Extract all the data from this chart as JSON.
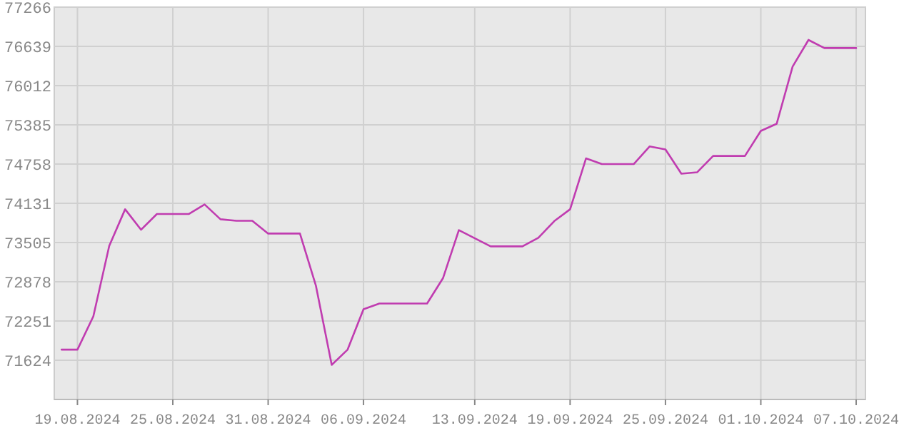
{
  "chart_data": {
    "type": "line",
    "x": [
      "2024-08-18",
      "2024-08-19",
      "2024-08-20",
      "2024-08-21",
      "2024-08-22",
      "2024-08-23",
      "2024-08-24",
      "2024-08-25",
      "2024-08-26",
      "2024-08-27",
      "2024-08-28",
      "2024-08-29",
      "2024-08-30",
      "2024-08-31",
      "2024-09-01",
      "2024-09-02",
      "2024-09-03",
      "2024-09-04",
      "2024-09-05",
      "2024-09-06",
      "2024-09-07",
      "2024-09-10",
      "2024-09-11",
      "2024-09-12",
      "2024-09-14",
      "2024-09-16",
      "2024-09-17",
      "2024-09-18",
      "2024-09-19",
      "2024-09-20",
      "2024-09-21",
      "2024-09-23",
      "2024-09-24",
      "2024-09-25",
      "2024-09-26",
      "2024-09-27",
      "2024-09-28",
      "2024-09-30",
      "2024-10-01",
      "2024-10-02",
      "2024-10-03",
      "2024-10-04",
      "2024-10-05",
      "2024-10-07"
    ],
    "series": [
      {
        "color": "#c03cb0",
        "values": [
          71794,
          71794,
          72325,
          73450,
          74036,
          73709,
          73960,
          73960,
          73960,
          74113,
          73876,
          73853,
          73853,
          73648,
          73648,
          73648,
          72820,
          71550,
          71794,
          72439,
          72530,
          72530,
          72934,
          73702,
          73443,
          73443,
          73580,
          73846,
          74036,
          74849,
          74758,
          74758,
          75040,
          74993,
          74605,
          74628,
          74888,
          74888,
          75289,
          75403,
          76315,
          76742,
          76612,
          76612
        ]
      }
    ],
    "xlim": [
      "2024-08-17T13:00",
      "2024-10-07T14:00"
    ],
    "xticks": [
      {
        "value": "2024-08-19",
        "label": "19.08.2024"
      },
      {
        "value": "2024-08-25",
        "label": "25.08.2024"
      },
      {
        "value": "2024-08-31",
        "label": "31.08.2024"
      },
      {
        "value": "2024-09-06",
        "label": "06.09.2024"
      },
      {
        "value": "2024-09-13",
        "label": "13.09.2024"
      },
      {
        "value": "2024-09-19",
        "label": "19.09.2024"
      },
      {
        "value": "2024-09-25",
        "label": "25.09.2024"
      },
      {
        "value": "2024-10-01",
        "label": "01.10.2024"
      },
      {
        "value": "2024-10-07",
        "label": "07.10.2024"
      }
    ],
    "ylim": [
      70997,
      77266
    ],
    "yticks": [
      71624,
      72251,
      72878,
      73505,
      74131,
      74758,
      75385,
      76012,
      76639,
      77266
    ],
    "grid": true,
    "line_style": "solid",
    "marker": "none"
  }
}
